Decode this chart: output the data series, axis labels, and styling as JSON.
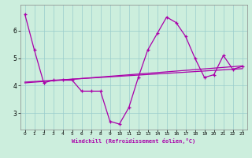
{
  "x": [
    0,
    1,
    2,
    3,
    4,
    5,
    6,
    7,
    8,
    9,
    10,
    11,
    12,
    13,
    14,
    15,
    16,
    17,
    18,
    19,
    20,
    21,
    22,
    23
  ],
  "line_main": [
    6.6,
    5.3,
    4.1,
    4.2,
    4.2,
    4.2,
    3.8,
    3.8,
    3.8,
    2.7,
    2.6,
    3.2,
    4.3,
    5.3,
    5.9,
    6.5,
    6.3,
    5.8,
    5.0,
    4.3,
    4.4,
    5.1,
    4.6,
    4.7
  ],
  "trend1_x": [
    0,
    23
  ],
  "trend1_y": [
    4.1,
    4.72
  ],
  "trend2_x": [
    0,
    23
  ],
  "trend2_y": [
    4.13,
    4.62
  ],
  "bg_color": "#cceedd",
  "line_color": "#aa00aa",
  "grid_color": "#99cccc",
  "xlabel": "Windchill (Refroidissement éolien,°C)",
  "ylim": [
    2.4,
    6.95
  ],
  "xlim": [
    -0.5,
    23.5
  ],
  "yticks": [
    3,
    4,
    5,
    6
  ],
  "xticks": [
    0,
    1,
    2,
    3,
    4,
    5,
    6,
    7,
    8,
    9,
    10,
    11,
    12,
    13,
    14,
    15,
    16,
    17,
    18,
    19,
    20,
    21,
    22,
    23
  ]
}
